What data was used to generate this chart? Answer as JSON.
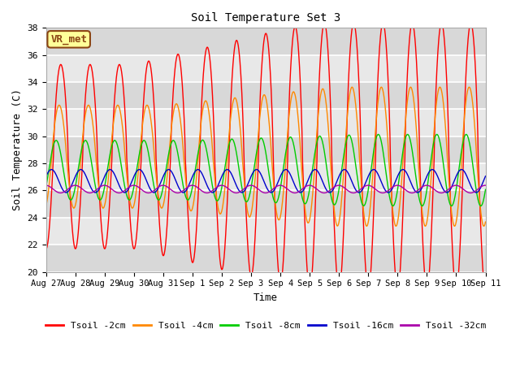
{
  "title": "Soil Temperature Set 3",
  "xlabel": "Time",
  "ylabel": "Soil Temperature (C)",
  "ylim": [
    20,
    38
  ],
  "yticks": [
    20,
    22,
    24,
    26,
    28,
    30,
    32,
    34,
    36,
    38
  ],
  "background_color": "#ffffff",
  "plot_bg_color": "#e8e8e8",
  "annotation_text": "VR_met",
  "annotation_bg": "#ffff99",
  "annotation_border": "#8b4513",
  "series": [
    {
      "label": "Tsoil -2cm",
      "color": "#ff0000",
      "lw": 1.0
    },
    {
      "label": "Tsoil -4cm",
      "color": "#ff8800",
      "lw": 1.0
    },
    {
      "label": "Tsoil -8cm",
      "color": "#00cc00",
      "lw": 1.0
    },
    {
      "label": "Tsoil -16cm",
      "color": "#0000cc",
      "lw": 1.0
    },
    {
      "label": "Tsoil -32cm",
      "color": "#aa00aa",
      "lw": 1.0
    }
  ],
  "date_labels": [
    "Aug 27",
    "Aug 28",
    "Aug 29",
    "Aug 30",
    "Aug 31",
    "Sep 1",
    "Sep 2",
    "Sep 3",
    "Sep 4",
    "Sep 5",
    "Sep 6",
    "Sep 7",
    "Sep 8",
    "Sep 9",
    "Sep 10",
    "Sep 11"
  ]
}
